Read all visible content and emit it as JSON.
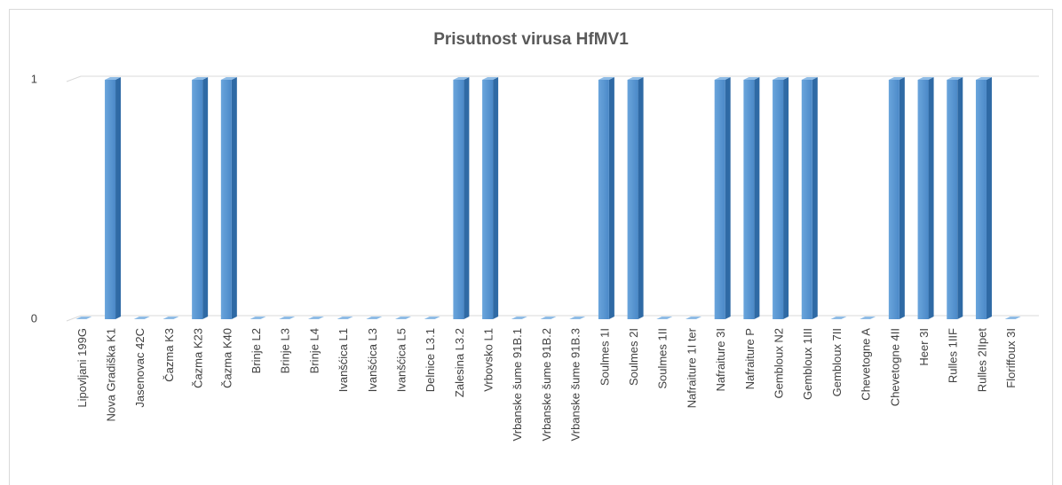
{
  "chart_data": {
    "type": "bar3d",
    "title": "Prisutnost virusa HfMV1",
    "categories": [
      "Lipovljani 199G",
      "Nova Gradiška K1",
      "Jasenovac 42C",
      "Čazma K3",
      "Čazma K23",
      "Čazma K40",
      "Brinje L2",
      "Brinje L3",
      "Brinje L4",
      "Ivanšćica L1",
      "Ivanšćica L3",
      "Ivanšćica L5",
      "Delnice L3.1",
      "Zalesina L3.2",
      "Vrbovsko L1",
      "Vrbanske šume 91B.1",
      "Vrbanske šume 91B.2",
      "Vrbanske šume 91B.3",
      "Soulmes 1I",
      "Soulmes 2I",
      "Soulmes 1II",
      "Nafraiture 1I ter",
      "Nafraiture 3I",
      "Nafraiture P",
      "Gembloux N2",
      "Gembloux 1III",
      "Gembloux 7II",
      "Chevetogne A",
      "Chevetogne 4II",
      "Heer 3I",
      "Rulles 1IIF",
      "Rulles 2IIpet",
      "Floriffoux 3I"
    ],
    "values": [
      0,
      1,
      0,
      0,
      1,
      1,
      0,
      0,
      0,
      0,
      0,
      0,
      0,
      1,
      1,
      0,
      0,
      0,
      1,
      1,
      0,
      0,
      1,
      1,
      1,
      1,
      0,
      0,
      1,
      1,
      1,
      1,
      0
    ],
    "color": "#5b9bd5",
    "ylim": [
      0,
      1
    ],
    "yticks": [
      0,
      1
    ],
    "grid": true
  }
}
